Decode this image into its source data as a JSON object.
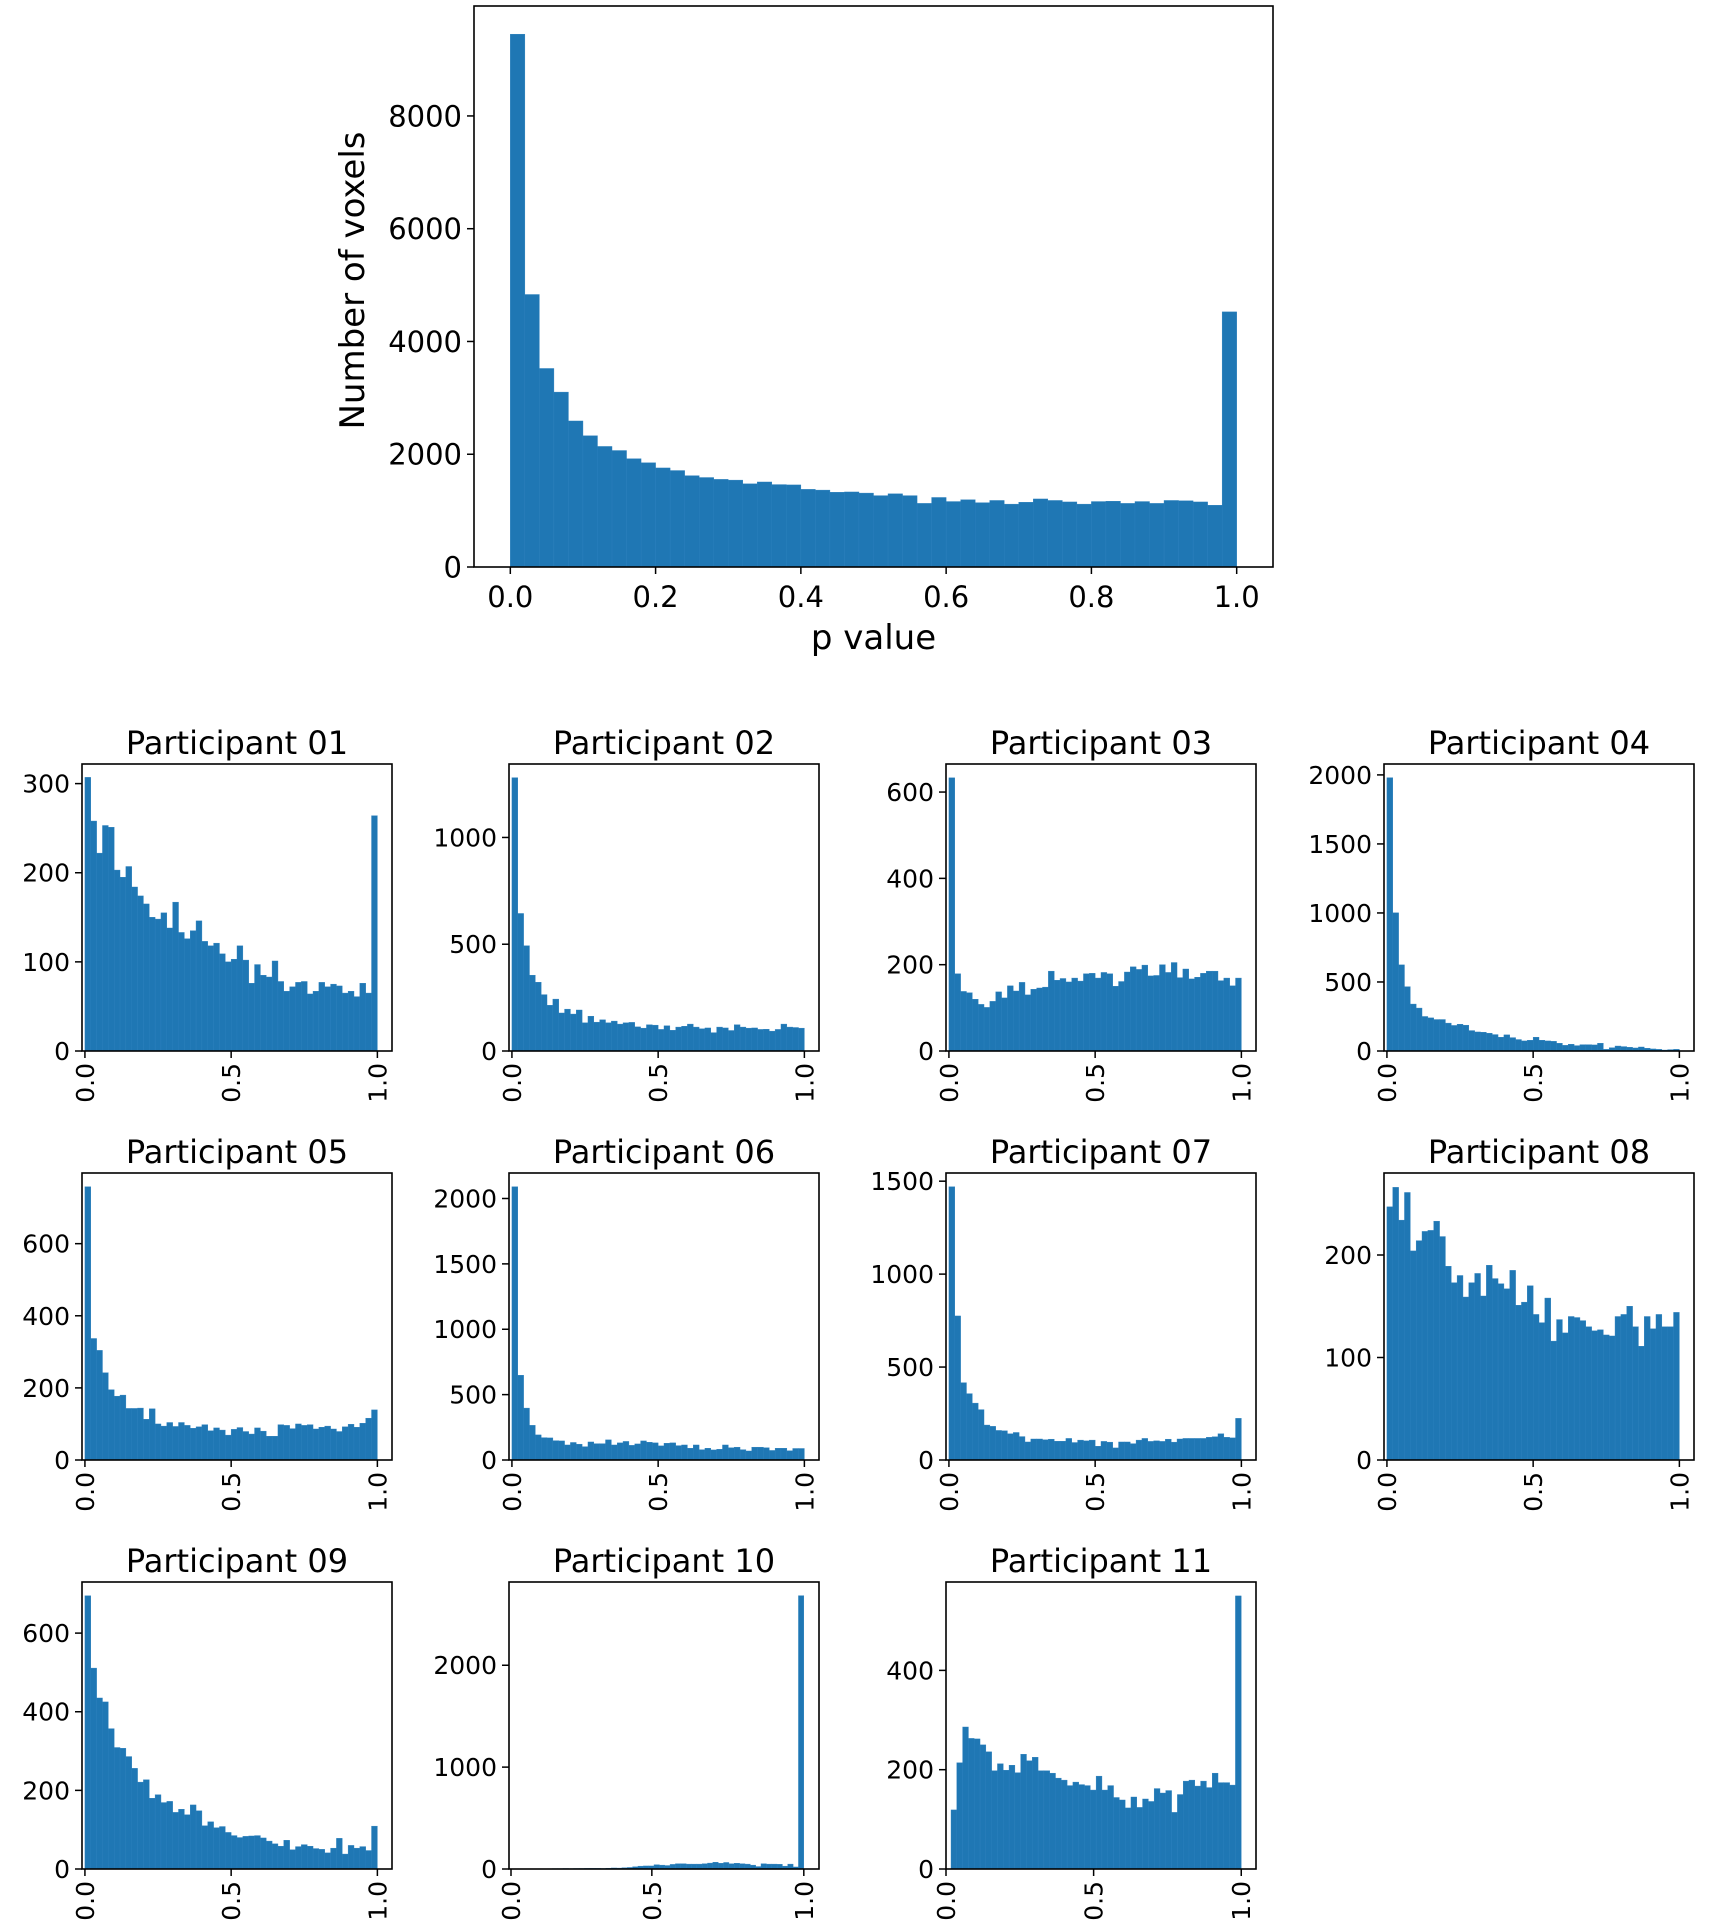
{
  "colors": {
    "bar": "#1f77b4",
    "axis": "#000000"
  },
  "chart_data": [
    {
      "type": "bar",
      "title": "",
      "xlabel": "p value",
      "ylabel": "Number of voxels",
      "bin_start": 0.0,
      "bin_width": 0.02,
      "xlim": [
        -0.05,
        1.05
      ],
      "ylim": [
        0,
        9950
      ],
      "xticks": [
        0,
        0.2,
        0.4,
        0.6,
        0.8,
        1.0
      ],
      "xtick_labels": [
        "0.0",
        "0.2",
        "0.4",
        "0.6",
        "0.8",
        "1.0"
      ],
      "yticks": [
        0,
        2000,
        4000,
        6000,
        8000
      ],
      "ytick_labels": [
        "0",
        "2000",
        "4000",
        "6000",
        "8000"
      ],
      "values": [
        9450,
        4833,
        3521,
        3102,
        2590,
        2328,
        2138,
        2066,
        1921,
        1849,
        1757,
        1711,
        1620,
        1587,
        1554,
        1541,
        1475,
        1508,
        1462,
        1456,
        1377,
        1364,
        1325,
        1331,
        1311,
        1266,
        1298,
        1266,
        1128,
        1233,
        1161,
        1193,
        1141,
        1180,
        1115,
        1148,
        1207,
        1180,
        1154,
        1115,
        1161,
        1167,
        1128,
        1161,
        1128,
        1180,
        1174,
        1154,
        1095,
        4525
      ]
    },
    {
      "type": "bar",
      "title": "Participant 01",
      "bin_start": 0.0,
      "bin_width": 0.02,
      "xlim": [
        -0.01,
        1.05
      ],
      "ylim": [
        0,
        322
      ],
      "xticks": [
        0,
        0.5,
        1.0
      ],
      "xtick_labels": [
        "0.0",
        "0.5",
        "1.0"
      ],
      "yticks": [
        0,
        100,
        200,
        300
      ],
      "ytick_labels": [
        "0",
        "100",
        "200",
        "300"
      ],
      "values": [
        307,
        258,
        222,
        253,
        251,
        203,
        195,
        207,
        184,
        174,
        165,
        150,
        148,
        155,
        138,
        167,
        133,
        126,
        135,
        146,
        123,
        118,
        121,
        109,
        100,
        103,
        118,
        102,
        76,
        97,
        85,
        83,
        101,
        78,
        67,
        72,
        77,
        78,
        64,
        67,
        77,
        72,
        75,
        73,
        65,
        67,
        61,
        76,
        65,
        264
      ]
    },
    {
      "type": "bar",
      "title": "Participant 02",
      "bin_start": 0.0,
      "bin_width": 0.02,
      "xlim": [
        -0.01,
        1.05
      ],
      "ylim": [
        0,
        1344
      ],
      "xticks": [
        0,
        0.5,
        1.0
      ],
      "xtick_labels": [
        "0.0",
        "0.5",
        "1.0"
      ],
      "yticks": [
        0,
        500,
        1000
      ],
      "ytick_labels": [
        "0",
        "500",
        "1000"
      ],
      "values": [
        1280,
        644,
        493,
        355,
        322,
        264,
        214,
        243,
        178,
        196,
        173,
        192,
        132,
        163,
        135,
        146,
        132,
        140,
        126,
        132,
        134,
        113,
        107,
        123,
        121,
        101,
        118,
        97,
        112,
        116,
        126,
        112,
        104,
        108,
        86,
        112,
        108,
        96,
        123,
        112,
        107,
        108,
        101,
        102,
        93,
        101,
        126,
        112,
        110,
        107
      ]
    },
    {
      "type": "bar",
      "title": "Participant 03",
      "bin_start": 0.0,
      "bin_width": 0.02,
      "xlim": [
        -0.01,
        1.05
      ],
      "ylim": [
        0,
        665
      ],
      "xticks": [
        0,
        0.5,
        1.0
      ],
      "xtick_labels": [
        "0.0",
        "0.5",
        "1.0"
      ],
      "yticks": [
        0,
        200,
        400,
        600
      ],
      "ytick_labels": [
        "0",
        "200",
        "400",
        "600"
      ],
      "values": [
        633,
        179,
        138,
        135,
        120,
        108,
        101,
        115,
        137,
        123,
        151,
        139,
        159,
        130,
        143,
        146,
        148,
        185,
        164,
        168,
        160,
        169,
        162,
        179,
        180,
        169,
        182,
        179,
        150,
        161,
        183,
        195,
        189,
        199,
        174,
        175,
        200,
        182,
        205,
        170,
        190,
        167,
        171,
        180,
        185,
        185,
        163,
        169,
        151,
        169
      ]
    },
    {
      "type": "bar",
      "title": "Participant 04",
      "bin_start": 0.0,
      "bin_width": 0.02,
      "xlim": [
        -0.01,
        1.05
      ],
      "ylim": [
        0,
        2079
      ],
      "xticks": [
        0,
        0.5,
        1.0
      ],
      "xtick_labels": [
        "0.0",
        "0.5",
        "1.0"
      ],
      "yticks": [
        0,
        500,
        1000,
        1500,
        2000
      ],
      "ytick_labels": [
        "0",
        "500",
        "1000",
        "1500",
        "2000"
      ],
      "values": [
        1980,
        1001,
        624,
        466,
        340,
        311,
        250,
        240,
        228,
        228,
        202,
        185,
        194,
        187,
        148,
        138,
        136,
        129,
        119,
        100,
        117,
        97,
        83,
        73,
        78,
        100,
        78,
        73,
        70,
        56,
        41,
        49,
        39,
        46,
        46,
        44,
        56,
        12,
        24,
        36,
        32,
        27,
        22,
        29,
        20,
        15,
        12,
        7,
        10,
        12
      ]
    },
    {
      "type": "bar",
      "title": "Participant 05",
      "bin_start": 0.0,
      "bin_width": 0.02,
      "xlim": [
        -0.01,
        1.05
      ],
      "ylim": [
        0,
        796
      ],
      "xticks": [
        0,
        0.5,
        1.0
      ],
      "xtick_labels": [
        "0.0",
        "0.5",
        "1.0"
      ],
      "yticks": [
        0,
        200,
        400,
        600
      ],
      "ytick_labels": [
        "0",
        "200",
        "400",
        "600"
      ],
      "values": [
        758,
        337,
        304,
        242,
        195,
        177,
        180,
        143,
        143,
        144,
        113,
        142,
        100,
        94,
        104,
        93,
        104,
        96,
        88,
        92,
        98,
        81,
        89,
        83,
        69,
        85,
        90,
        79,
        72,
        89,
        80,
        66,
        66,
        98,
        96,
        87,
        100,
        96,
        98,
        86,
        91,
        94,
        86,
        79,
        92,
        99,
        91,
        102,
        116,
        139
      ]
    },
    {
      "type": "bar",
      "title": "Participant 06",
      "bin_start": 0.0,
      "bin_width": 0.02,
      "xlim": [
        -0.01,
        1.05
      ],
      "ylim": [
        0,
        2195
      ],
      "xticks": [
        0,
        0.5,
        1.0
      ],
      "xtick_labels": [
        "0.0",
        "0.5",
        "1.0"
      ],
      "yticks": [
        0,
        500,
        1000,
        1500,
        2000
      ],
      "ytick_labels": [
        "0",
        "500",
        "1000",
        "1500",
        "2000"
      ],
      "values": [
        2090,
        648,
        397,
        265,
        192,
        171,
        169,
        148,
        146,
        115,
        134,
        121,
        102,
        138,
        125,
        125,
        154,
        115,
        131,
        142,
        112,
        123,
        146,
        136,
        131,
        108,
        128,
        131,
        110,
        115,
        90,
        115,
        79,
        90,
        77,
        82,
        115,
        94,
        98,
        79,
        69,
        98,
        98,
        94,
        73,
        90,
        90,
        71,
        88,
        88
      ]
    },
    {
      "type": "bar",
      "title": "Participant 07",
      "bin_start": 0.0,
      "bin_width": 0.02,
      "xlim": [
        -0.01,
        1.05
      ],
      "ylim": [
        0,
        1544
      ],
      "xticks": [
        0,
        0.5,
        1.0
      ],
      "xtick_labels": [
        "0.0",
        "0.5",
        "1.0"
      ],
      "yticks": [
        0,
        500,
        1000,
        1500
      ],
      "ytick_labels": [
        "0",
        "500",
        "1000",
        "1500"
      ],
      "values": [
        1470,
        775,
        416,
        357,
        306,
        271,
        188,
        181,
        159,
        157,
        141,
        148,
        126,
        97,
        113,
        113,
        109,
        112,
        101,
        101,
        116,
        94,
        107,
        103,
        107,
        74,
        100,
        96,
        65,
        97,
        97,
        88,
        107,
        116,
        100,
        103,
        100,
        112,
        96,
        113,
        116,
        116,
        116,
        116,
        122,
        125,
        141,
        122,
        119,
        224
      ]
    },
    {
      "type": "bar",
      "title": "Participant 08",
      "bin_start": 0.0,
      "bin_width": 0.02,
      "xlim": [
        -0.01,
        1.05
      ],
      "ylim": [
        0,
        280
      ],
      "xticks": [
        0,
        0.5,
        1.0
      ],
      "xtick_labels": [
        "0.0",
        "0.5",
        "1.0"
      ],
      "yticks": [
        0,
        100,
        200
      ],
      "ytick_labels": [
        "0",
        "100",
        "200"
      ],
      "values": [
        247,
        266,
        234,
        261,
        204,
        214,
        223,
        224,
        233,
        218,
        189,
        173,
        180,
        159,
        173,
        182,
        160,
        190,
        177,
        172,
        167,
        185,
        151,
        154,
        170,
        142,
        134,
        158,
        116,
        137,
        124,
        140,
        139,
        136,
        130,
        126,
        127,
        122,
        121,
        140,
        142,
        150,
        130,
        111,
        140,
        128,
        142,
        130,
        130,
        144
      ]
    },
    {
      "type": "bar",
      "title": "Participant 09",
      "bin_start": 0.0,
      "bin_width": 0.02,
      "xlim": [
        -0.01,
        1.05
      ],
      "ylim": [
        0,
        730
      ],
      "xticks": [
        0,
        0.5,
        1.0
      ],
      "xtick_labels": [
        "0.0",
        "0.5",
        "1.0"
      ],
      "yticks": [
        0,
        200,
        400,
        600
      ],
      "ytick_labels": [
        "0",
        "200",
        "400",
        "600"
      ],
      "values": [
        695,
        511,
        435,
        425,
        357,
        309,
        307,
        286,
        256,
        221,
        227,
        180,
        189,
        169,
        172,
        144,
        152,
        138,
        163,
        148,
        110,
        120,
        105,
        108,
        93,
        85,
        80,
        83,
        84,
        85,
        79,
        71,
        64,
        58,
        73,
        49,
        57,
        62,
        58,
        52,
        50,
        41,
        53,
        78,
        38,
        60,
        53,
        57,
        47,
        109
      ]
    },
    {
      "type": "bar",
      "title": "Participant 10",
      "bin_start": 0.12,
      "bin_width": 0.0176,
      "xlim": [
        0.03,
        1.05
      ],
      "ylim": [
        0,
        2817
      ],
      "xticks": [
        0,
        0.5,
        1.0
      ],
      "xtick_labels": [
        "0.0",
        "0.5",
        "1.0"
      ],
      "yticks": [
        0,
        1000,
        2000
      ],
      "ytick_labels": [
        "0",
        "1000",
        "2000"
      ],
      "values": [
        2,
        2,
        3,
        4,
        4,
        5,
        4,
        5,
        5,
        6,
        6,
        6,
        5,
        8,
        10,
        9,
        12,
        15,
        22,
        28,
        30,
        30,
        42,
        38,
        34,
        45,
        52,
        52,
        48,
        48,
        48,
        52,
        58,
        66,
        56,
        64,
        52,
        56,
        52,
        48,
        38,
        24,
        52,
        48,
        48,
        46,
        28,
        48,
        20,
        2683
      ]
    },
    {
      "type": "bar",
      "title": "Participant 11",
      "bin_start": 0.017,
      "bin_width": 0.01966,
      "xlim": [
        0.0,
        1.05
      ],
      "ylim": [
        0,
        578
      ],
      "xticks": [
        0,
        0.5,
        1.0
      ],
      "xtick_labels": [
        "0.0",
        "0.5",
        "1.0"
      ],
      "yticks": [
        0,
        200,
        400
      ],
      "ytick_labels": [
        "0",
        "200",
        "400"
      ],
      "values": [
        119,
        214,
        286,
        263,
        262,
        250,
        236,
        198,
        212,
        199,
        209,
        194,
        231,
        218,
        225,
        198,
        198,
        193,
        183,
        179,
        168,
        175,
        170,
        168,
        159,
        187,
        159,
        168,
        144,
        139,
        123,
        145,
        124,
        141,
        136,
        162,
        153,
        158,
        114,
        150,
        177,
        179,
        167,
        177,
        164,
        193,
        174,
        174,
        169,
        550
      ]
    }
  ]
}
